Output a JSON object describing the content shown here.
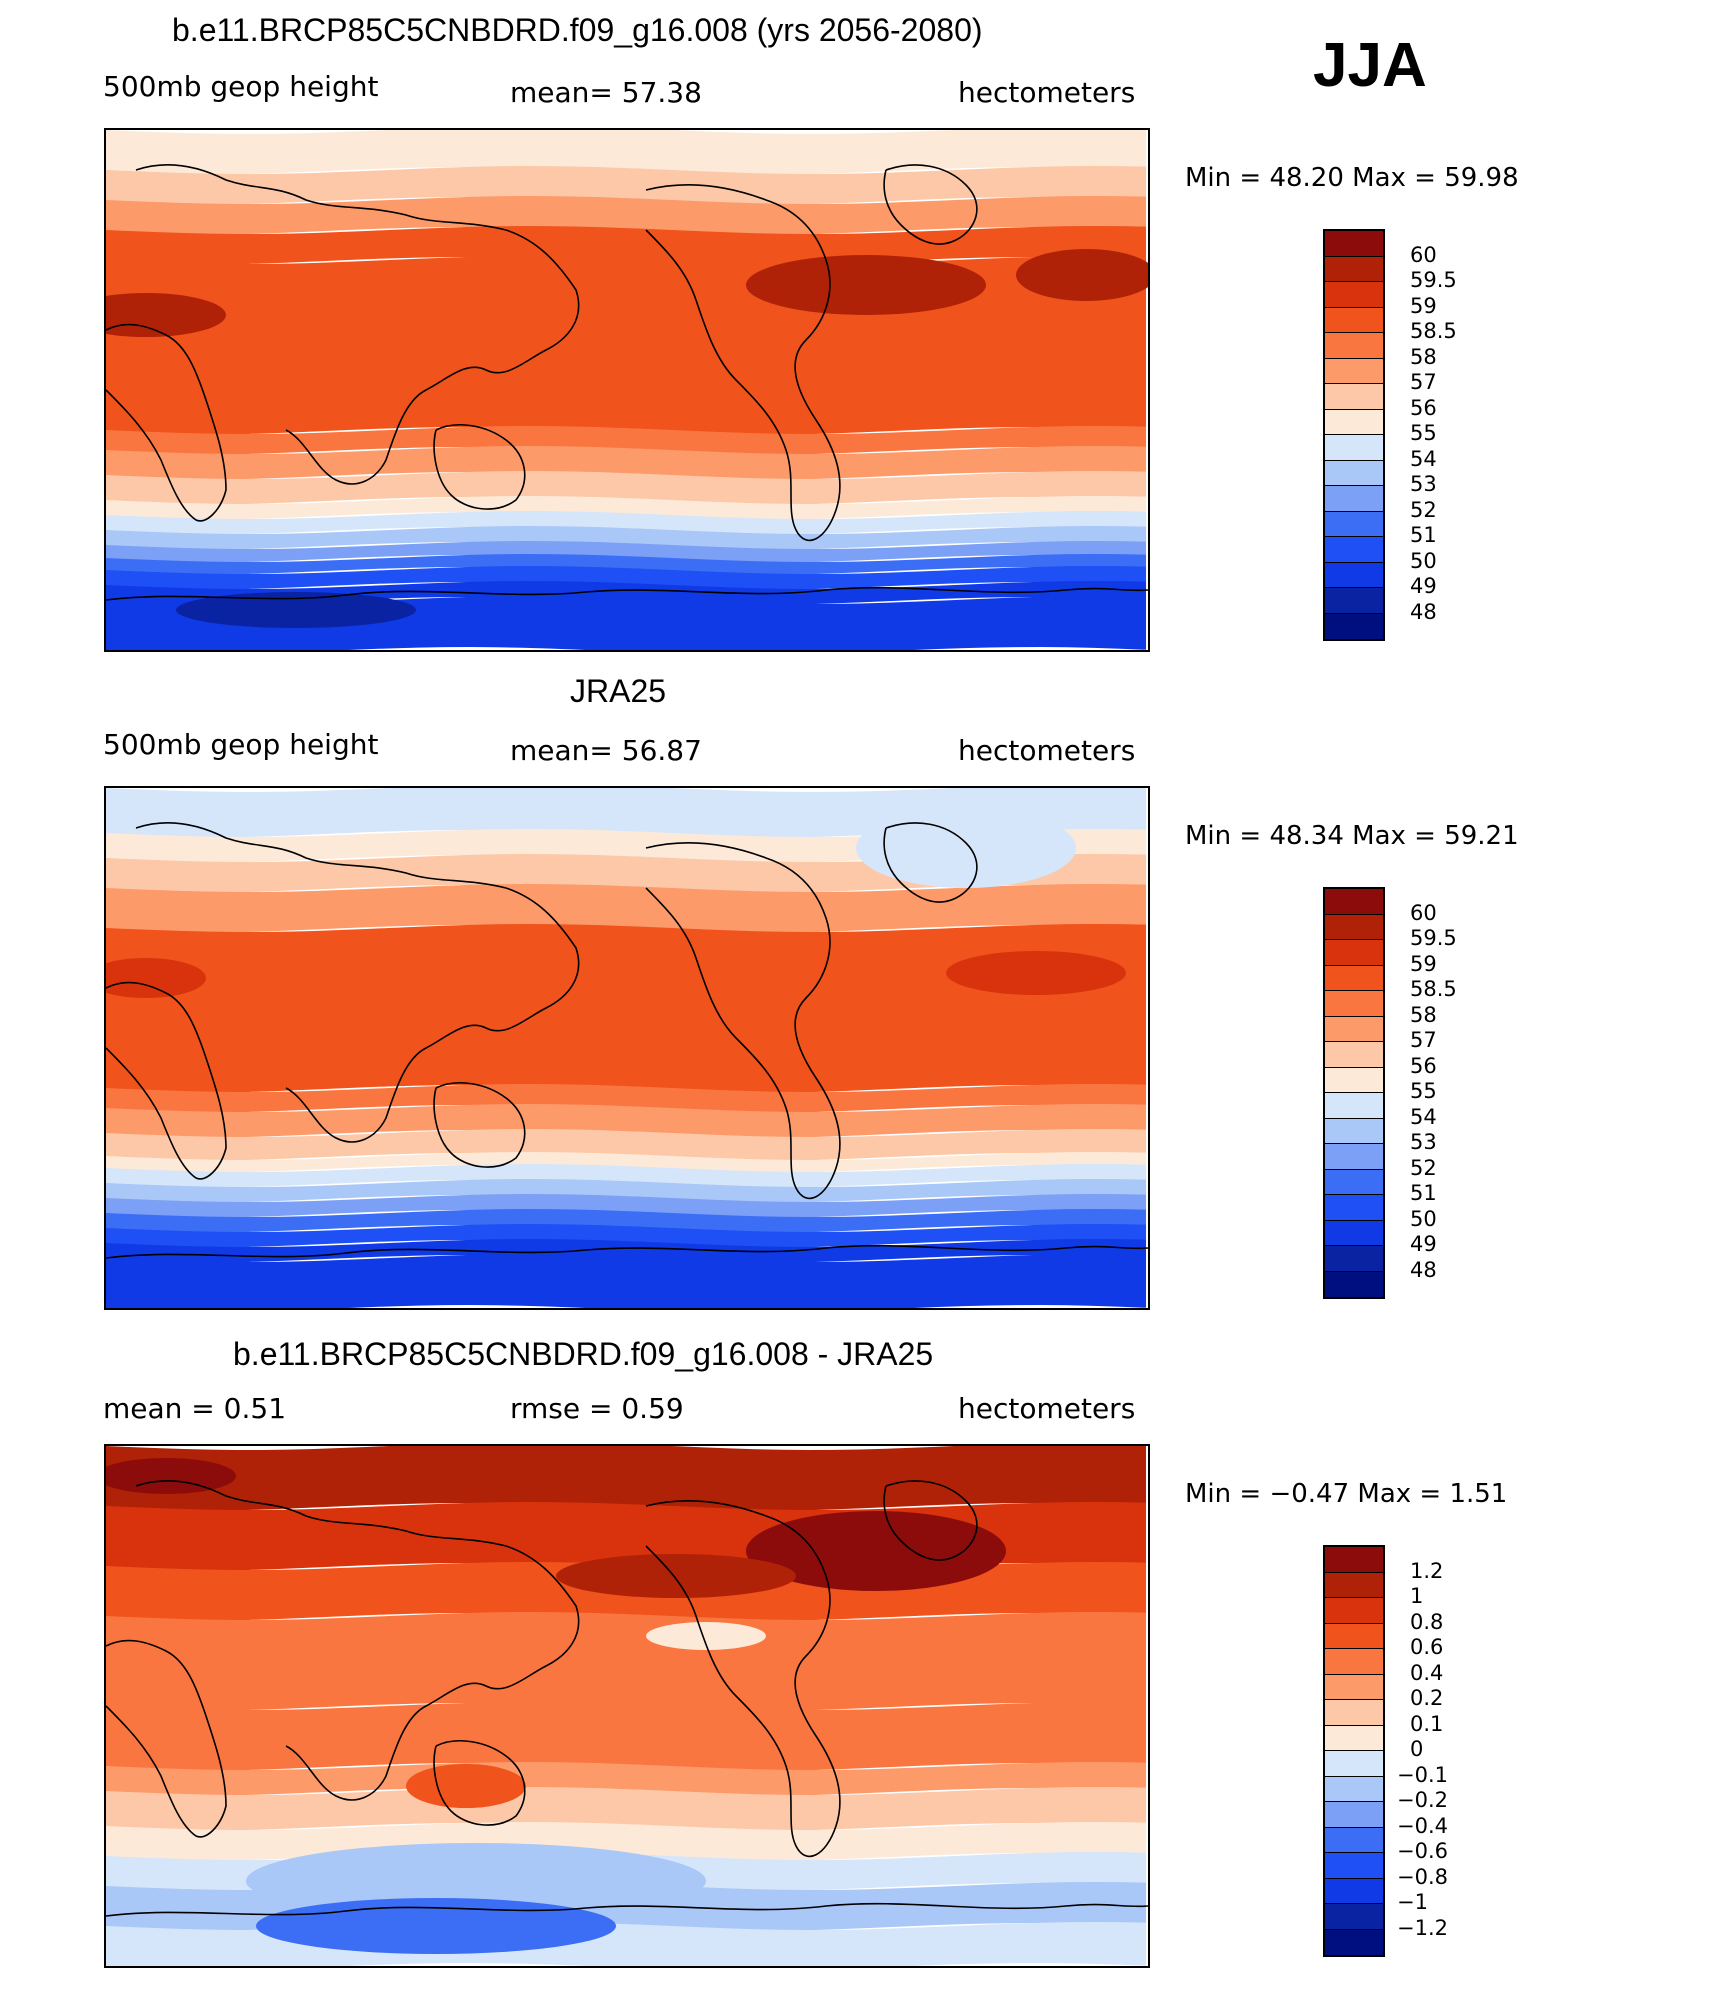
{
  "season": "JJA",
  "colors": {
    "height_scale": [
      "#000f80",
      "#0a23a3",
      "#0f3ae6",
      "#1e50f5",
      "#3c6ef5",
      "#7ca0f5",
      "#a9c7f7",
      "#d6e6fa",
      "#fde9d8",
      "#fcc8a8",
      "#fc9a6a",
      "#fa7640",
      "#f0531c",
      "#d8330c",
      "#b02208",
      "#8c0c0c"
    ],
    "diff_scale": [
      "#000f80",
      "#0a23a3",
      "#0f3ae6",
      "#1e50f5",
      "#3c6ef5",
      "#7ca0f5",
      "#a9c7f7",
      "#d6e6fa",
      "#fde9d8",
      "#fcc8a8",
      "#fc9a6a",
      "#fa7640",
      "#f0531c",
      "#d8330c",
      "#b02208",
      "#8c0c0c"
    ]
  },
  "panels": [
    {
      "title": "b.e11.BRCP85C5CNBDRD.f09_g16.008 (yrs 2056-2080)",
      "left_label": "500mb  geop  height",
      "center_label": "mean=   57.38",
      "right_label": "hectometers",
      "minmax": "Min  =    48.20  Max  =    59.98",
      "levels": [
        "60",
        "59.5",
        "59",
        "58.5",
        "58",
        "57",
        "56",
        "55",
        "54",
        "53",
        "52",
        "51",
        "50",
        "49",
        "48"
      ],
      "field_mean": 57.38,
      "field_min": 48.2,
      "field_max": 59.98
    },
    {
      "title": "JRA25",
      "left_label": "500mb  geop  height",
      "center_label": "mean=   56.87",
      "right_label": "hectometers",
      "minmax": "Min  =    48.34  Max  =    59.21",
      "levels": [
        "60",
        "59.5",
        "59",
        "58.5",
        "58",
        "57",
        "56",
        "55",
        "54",
        "53",
        "52",
        "51",
        "50",
        "49",
        "48"
      ],
      "field_mean": 56.87,
      "field_min": 48.34,
      "field_max": 59.21
    },
    {
      "title": "b.e11.BRCP85C5CNBDRD.f09_g16.008 - JRA25",
      "left_label": "mean  =      0.51",
      "center_label": "rmse  =     0.59",
      "right_label": "hectometers",
      "minmax": "Min  =   −0.47  Max  =      1.51",
      "levels": [
        "1.2",
        "1",
        "0.8",
        "0.6",
        "0.4",
        "0.2",
        "0.1",
        "0",
        "−0.1",
        "−0.2",
        "−0.4",
        "−0.6",
        "−0.8",
        "−1",
        "−1.2"
      ],
      "field_mean": 0.51,
      "field_min": -0.47,
      "field_max": 1.51
    }
  ]
}
